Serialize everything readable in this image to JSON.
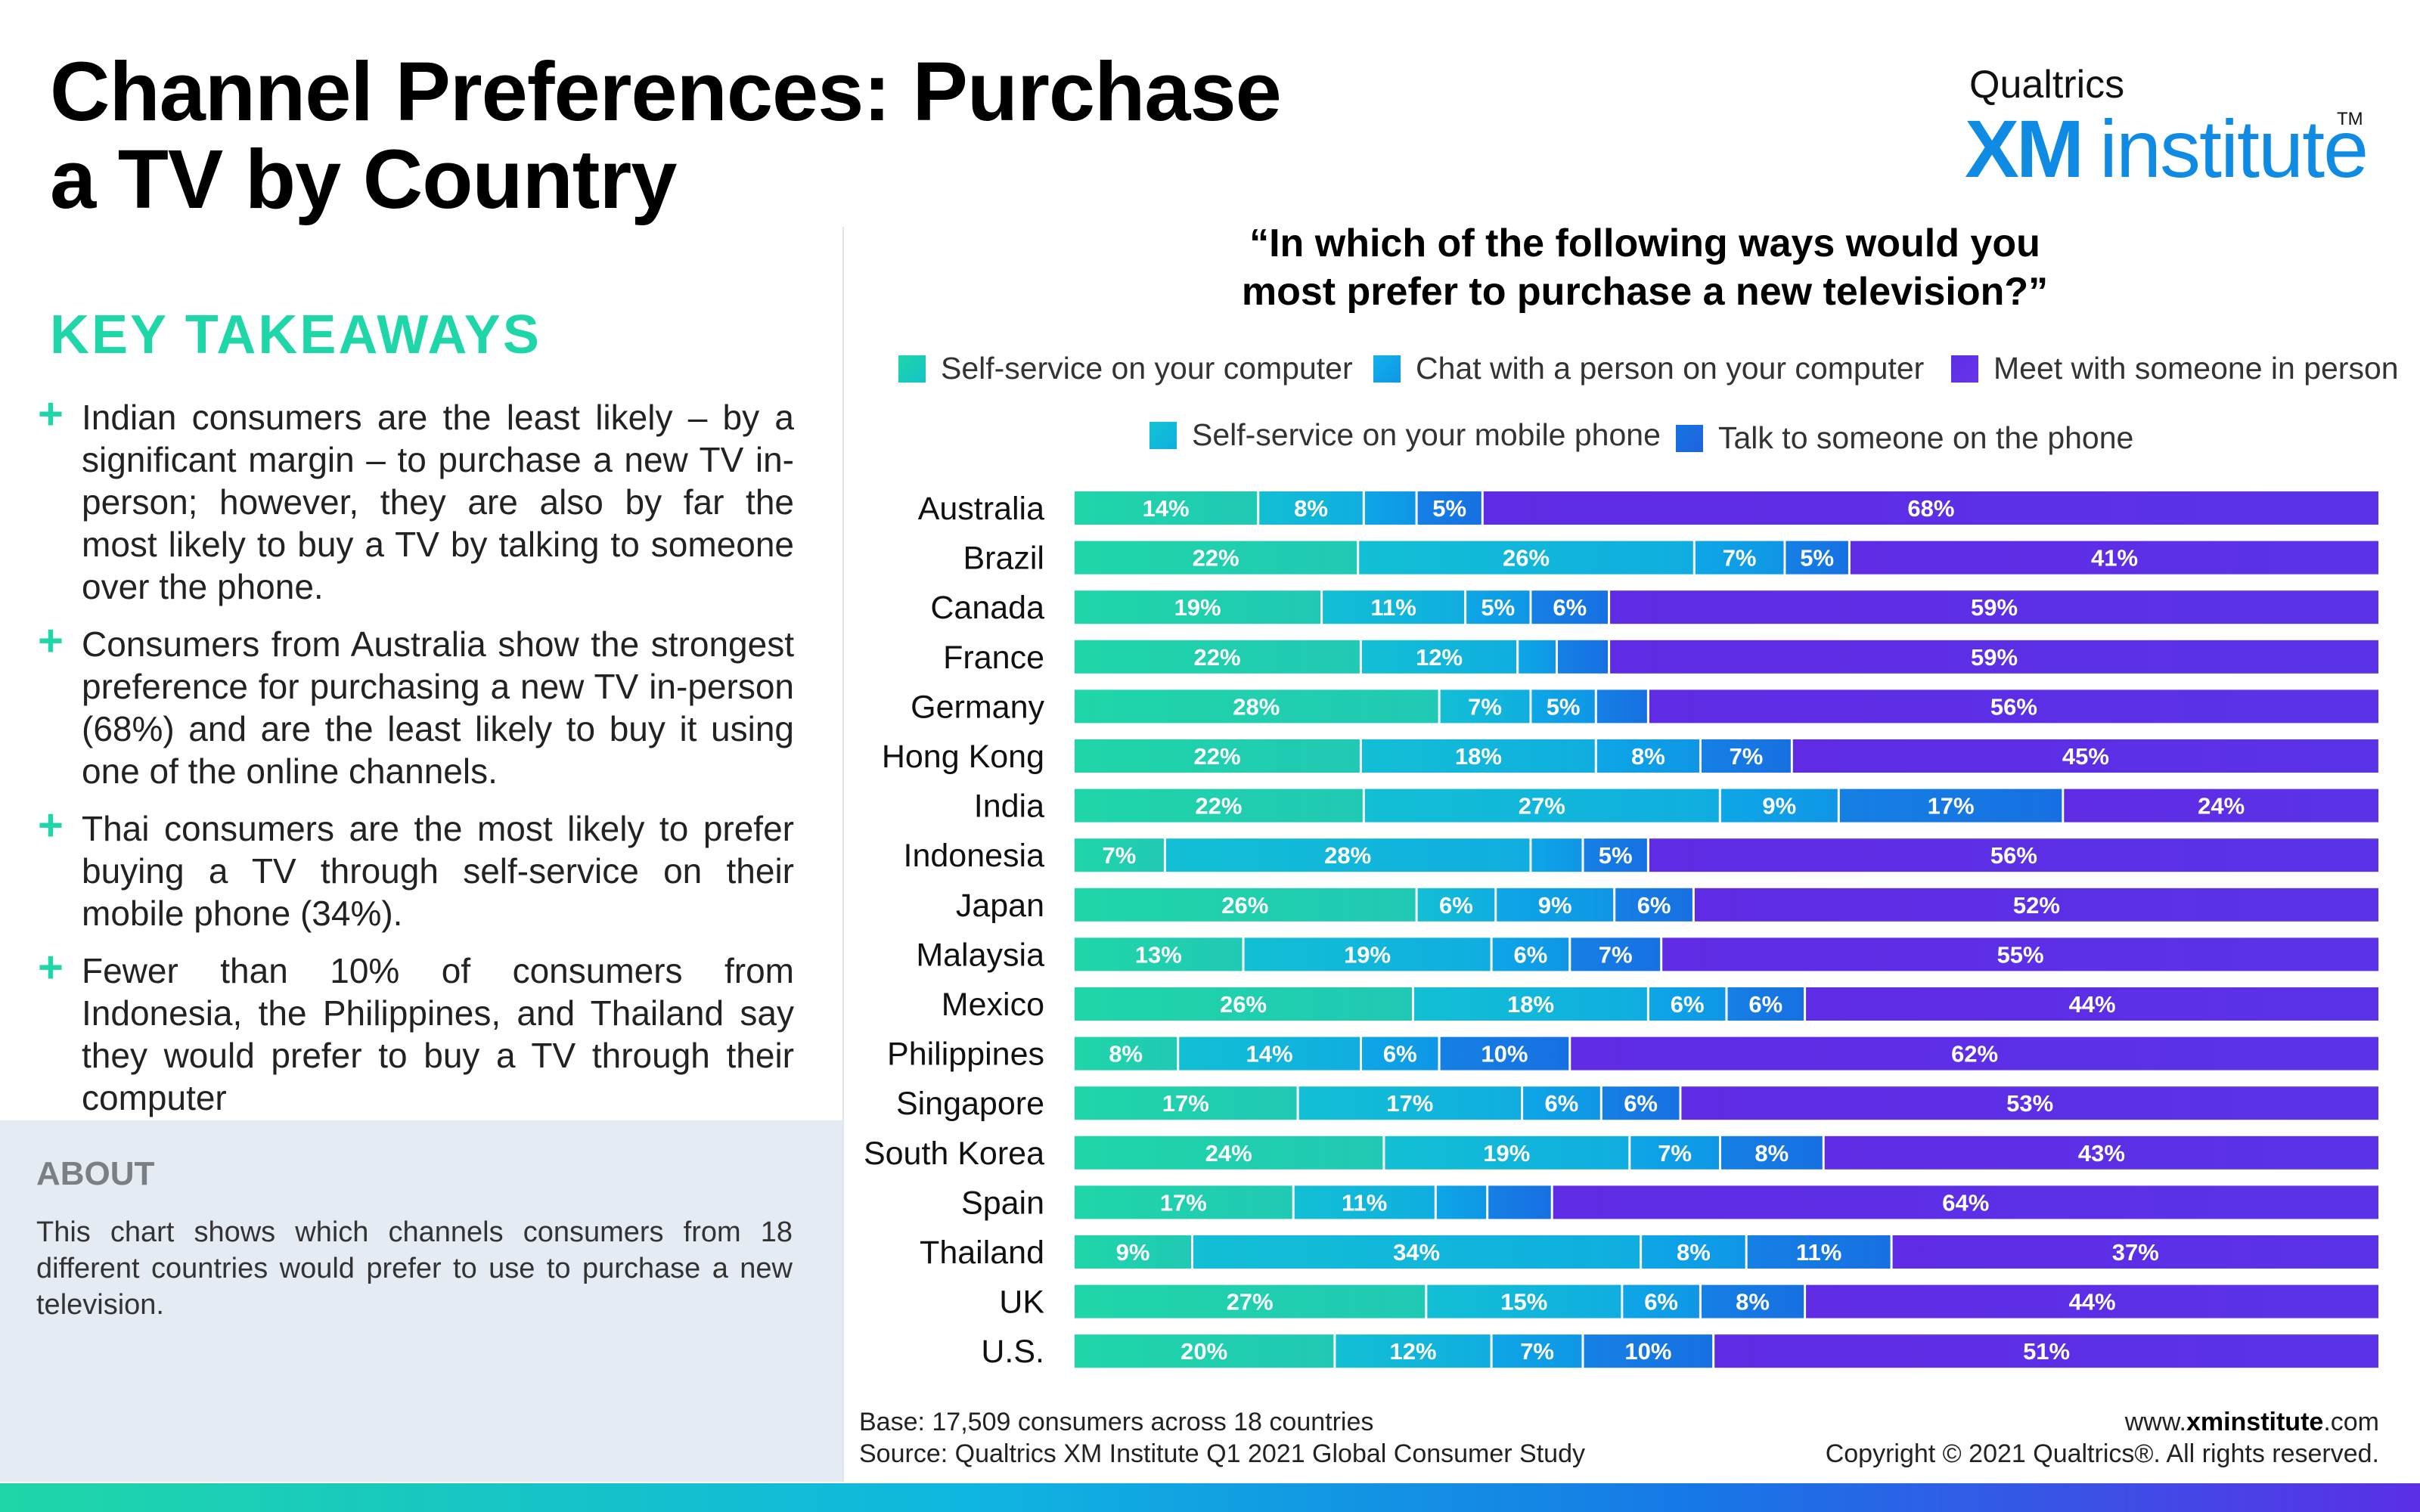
{
  "header": {
    "title_line1": "Channel Preferences: Purchase",
    "title_line2": "a TV by Country"
  },
  "logo": {
    "top_text": "Qualtrics",
    "xm": "XM",
    "institute": "institute",
    "tm": "TM"
  },
  "key_takeaways": {
    "title": "KEY TAKEAWAYS",
    "items": [
      "Indian consumers are the least likely – by a significant margin – to purchase a new TV in-person; however, they are also by far the most likely to buy a TV by talking to someone over the phone.",
      "Consumers from Australia show the strongest preference for purchasing a new TV in-person (68%) and are the least likely to buy it using one of the online channels.",
      "Thai consumers are the most likely to prefer buying a TV through self-service on their mobile phone (34%).",
      "Fewer than 10% of consumers from Indonesia, the Philippines, and Thailand say they would prefer to buy a TV through their computer"
    ]
  },
  "about": {
    "title": "ABOUT",
    "text": "This chart shows which channels consumers from 18 different countries would prefer to use to purchase a new television."
  },
  "footer": {
    "base": "Base: 17,509 consumers across 18 countries",
    "source": "Source: Qualtrics XM Institute Q1 2021 Global Consumer Study",
    "url_prefix": "www.",
    "url_bold": "xminstitute",
    "url_suffix": ".com",
    "copyright": "Copyright © 2021 Qualtrics®. All rights reserved."
  },
  "colors": {
    "brand_green": "#1fd6a8",
    "brand_blue": "#0f8be3",
    "about_bg": "#e4ebf3"
  },
  "chart_data": {
    "type": "bar",
    "orientation": "horizontal",
    "stacked": true,
    "normalized": true,
    "title": "“In which of the following ways would you most prefer to purchase a new television?”",
    "title_line1": "“In which of the following ways would you",
    "title_line2": "most prefer to purchase a new television?”",
    "legend_position": "top",
    "categories": [
      "Australia",
      "Brazil",
      "Canada",
      "France",
      "Germany",
      "Hong Kong",
      "India",
      "Indonesia",
      "Japan",
      "Malaysia",
      "Mexico",
      "Philippines",
      "Singapore",
      "South Korea",
      "Spain",
      "Thailand",
      "UK",
      "U.S."
    ],
    "series": [
      {
        "name": "Self-service on your computer",
        "color": "#1fd6a8",
        "color_end": "#20c9b4",
        "legend_color": "#1fd6a8",
        "values": [
          14,
          22,
          19,
          22,
          28,
          22,
          22,
          7,
          26,
          13,
          26,
          8,
          17,
          24,
          17,
          9,
          27,
          20
        ]
      },
      {
        "name": "Self-service on your mobile phone",
        "color": "#12bfd4",
        "color_end": "#10aee0",
        "legend_color": "#12c4d2",
        "values": [
          8,
          26,
          11,
          12,
          7,
          18,
          27,
          28,
          6,
          19,
          18,
          14,
          17,
          19,
          11,
          34,
          15,
          12
        ]
      },
      {
        "name": "Chat with a person on your computer",
        "color": "#0ea6e6",
        "color_end": "#0f96e6",
        "legend_color": "#12b2ea",
        "values": [
          4,
          7,
          5,
          3,
          5,
          8,
          9,
          4,
          9,
          6,
          6,
          6,
          6,
          7,
          4,
          8,
          6,
          7
        ]
      },
      {
        "name": "Talk to someone on the phone",
        "color": "#1580e4",
        "color_end": "#1770e2",
        "legend_color": "#1474e2",
        "values": [
          5,
          5,
          6,
          4,
          4,
          7,
          17,
          5,
          6,
          7,
          6,
          10,
          6,
          8,
          5,
          11,
          8,
          10
        ]
      },
      {
        "name": "Meet with someone in person",
        "color": "#5f2be4",
        "color_end": "#5a33e8",
        "legend_color": "#5a2fe6",
        "values": [
          68,
          41,
          59,
          59,
          56,
          45,
          24,
          56,
          52,
          55,
          44,
          62,
          53,
          43,
          64,
          37,
          44,
          51
        ]
      }
    ],
    "data_labels": [
      [
        "14%",
        "8%",
        "",
        "5%",
        "68%"
      ],
      [
        "22%",
        "26%",
        "7%",
        "5%",
        "41%"
      ],
      [
        "19%",
        "11%",
        "5%",
        "6%",
        "59%"
      ],
      [
        "22%",
        "12%",
        "",
        "",
        "59%"
      ],
      [
        "28%",
        "7%",
        "5%",
        "",
        "56%"
      ],
      [
        "22%",
        "18%",
        "8%",
        "7%",
        "45%"
      ],
      [
        "22%",
        "27%",
        "9%",
        "17%",
        "24%"
      ],
      [
        "7%",
        "28%",
        "",
        "5%",
        "56%"
      ],
      [
        "26%",
        "6%",
        "9%",
        "6%",
        "52%"
      ],
      [
        "13%",
        "19%",
        "6%",
        "7%",
        "55%"
      ],
      [
        "26%",
        "18%",
        "6%",
        "6%",
        "44%"
      ],
      [
        "8%",
        "14%",
        "6%",
        "10%",
        "62%"
      ],
      [
        "17%",
        "17%",
        "6%",
        "6%",
        "53%"
      ],
      [
        "24%",
        "19%",
        "7%",
        "8%",
        "43%"
      ],
      [
        "17%",
        "11%",
        "",
        "",
        "64%"
      ],
      [
        "9%",
        "34%",
        "8%",
        "11%",
        "37%"
      ],
      [
        "27%",
        "15%",
        "6%",
        "8%",
        "44%"
      ],
      [
        "20%",
        "12%",
        "7%",
        "10%",
        "51%"
      ]
    ],
    "xlim": [
      0,
      100
    ],
    "grid": false
  }
}
